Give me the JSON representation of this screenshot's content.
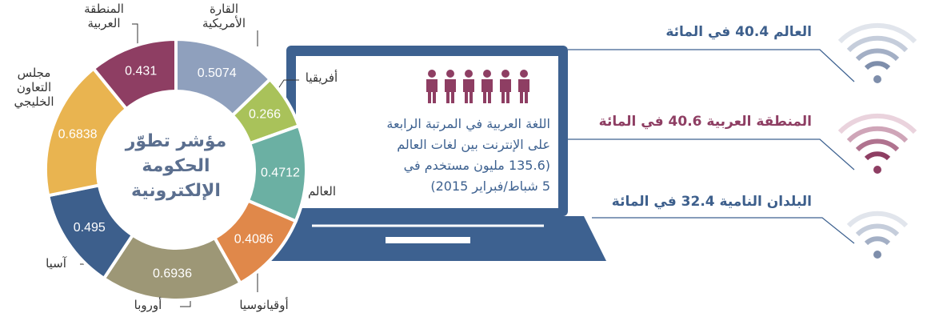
{
  "chart_data": {
    "type": "donut",
    "title": "مؤشر تطوّر الحكومة الإلكترونية",
    "categories": [
      "القارة الأمريكية",
      "أفريقيا",
      "العالم",
      "أوقيانوسيا",
      "أوروبا",
      "آسيا",
      "مجلس التعاون الخليجي",
      "المنطقة العربية"
    ],
    "values": [
      0.5074,
      0.266,
      0.4712,
      0.4086,
      0.6936,
      0.495,
      0.6838,
      0.431
    ],
    "colors": [
      "#8fa0bd",
      "#a9c25a",
      "#6bb0a3",
      "#e0884a",
      "#9d9776",
      "#3d5f8c",
      "#e9b450",
      "#8e3e63"
    ]
  },
  "laptop": {
    "lines": [
      "اللغة العربية في المرتبة الرابعة",
      "على الإنترنت بين لغات العالم",
      "(135.6 مليون مستخدم في",
      "5 شباط/فبراير 2015)"
    ]
  },
  "stats": [
    {
      "text": "العالم 40.4 في المائة",
      "color": "#3d5f8c"
    },
    {
      "text": "المنطقة العربية 40.6 في المائة",
      "color": "#8e3e63"
    },
    {
      "text": "البلدان النامية 32.4 في المائة",
      "color": "#3d5f8c"
    }
  ]
}
